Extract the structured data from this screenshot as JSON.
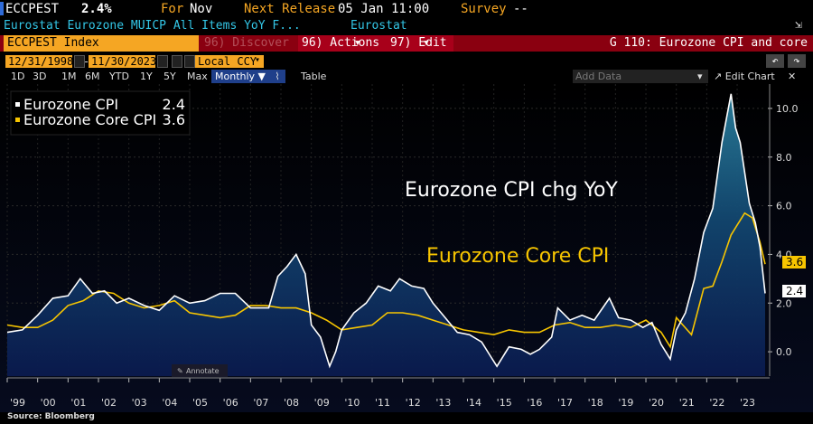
{
  "header": {
    "ticker": "ECCPEST",
    "value": "2.4%",
    "for_label": "For",
    "for_value": "Nov",
    "next_release_label": "Next Release",
    "next_release_value": "05 Jan 11:00",
    "survey_label": "Survey",
    "survey_value": "--",
    "description": "Eurostat Eurozone MUICP All Items YoY F...",
    "source_name": "Eurostat"
  },
  "toolbar": {
    "security": "ECCPEST Index",
    "discover": "96) Discover",
    "actions": "96) Actions",
    "edit": "97) Edit",
    "chart_title": "G 110: Eurozone CPI and core",
    "start_date": "12/31/1998",
    "end_date": "11/30/2023",
    "currency": "Local CCY",
    "periods": [
      "1D",
      "3D",
      "1M",
      "6M",
      "YTD",
      "1Y",
      "5Y",
      "Max"
    ],
    "frequency": "Monthly",
    "table_label": "Table",
    "add_data_placeholder": "Add Data",
    "edit_chart": "Edit Chart"
  },
  "legend": {
    "cpi_label": "Eurozone CPI",
    "cpi_value": "2.4",
    "core_label": "Eurozone Core CPI",
    "core_value": "3.6"
  },
  "annotations": {
    "cpi_title": "Eurozone CPI chg YoY",
    "core_title": "Eurozone Core CPI",
    "annotate_button": "Annotate"
  },
  "footer": {
    "source": "Source: Bloomberg"
  },
  "colors": {
    "cpi": "#ffffff",
    "core": "#f7c500",
    "accent": "#f5a623",
    "bar": "#8a0010"
  },
  "chart_data": {
    "type": "area",
    "ylim": [
      -1.0,
      11.0
    ],
    "yticks": [
      0.0,
      2.0,
      4.0,
      6.0,
      8.0,
      10.0
    ],
    "ytick_labels": [
      "0.0",
      "2.0",
      "4.0",
      "6.0",
      "8.0",
      "10.0"
    ],
    "xticks": [
      "'99",
      "'00",
      "'01",
      "'02",
      "'03",
      "'04",
      "'05",
      "'06",
      "'07",
      "'08",
      "'09",
      "'10",
      "'11",
      "'12",
      "'13",
      "'14",
      "'15",
      "'16",
      "'17",
      "'18",
      "'19",
      "'20",
      "'21",
      "'22",
      "'23"
    ],
    "series": [
      {
        "name": "Eurozone CPI",
        "last_value": 2.4,
        "x": [
          1999.0,
          1999.5,
          2000.0,
          2000.5,
          2001.0,
          2001.4,
          2001.8,
          2002.2,
          2002.6,
          2003.0,
          2003.5,
          2004.0,
          2004.5,
          2005.0,
          2005.5,
          2006.0,
          2006.5,
          2007.0,
          2007.6,
          2007.9,
          2008.2,
          2008.5,
          2008.8,
          2009.0,
          2009.3,
          2009.6,
          2009.8,
          2010.0,
          2010.4,
          2010.8,
          2011.2,
          2011.6,
          2011.9,
          2012.3,
          2012.7,
          2013.0,
          2013.4,
          2013.8,
          2014.2,
          2014.6,
          2014.9,
          2015.1,
          2015.5,
          2015.9,
          2016.2,
          2016.5,
          2016.9,
          2017.1,
          2017.5,
          2017.9,
          2018.3,
          2018.8,
          2019.1,
          2019.5,
          2019.9,
          2020.2,
          2020.5,
          2020.8,
          2021.0,
          2021.3,
          2021.6,
          2021.9,
          2022.2,
          2022.5,
          2022.8,
          2022.95,
          2023.1,
          2023.4,
          2023.6,
          2023.75,
          2023.92
        ],
        "y": [
          0.8,
          0.9,
          1.5,
          2.2,
          2.3,
          3.0,
          2.4,
          2.5,
          2.0,
          2.2,
          1.9,
          1.7,
          2.3,
          2.0,
          2.1,
          2.4,
          2.4,
          1.8,
          1.8,
          3.1,
          3.5,
          4.0,
          3.2,
          1.1,
          0.6,
          -0.6,
          0.0,
          0.9,
          1.6,
          2.0,
          2.7,
          2.5,
          3.0,
          2.7,
          2.6,
          2.0,
          1.4,
          0.8,
          0.7,
          0.4,
          -0.2,
          -0.6,
          0.2,
          0.1,
          -0.1,
          0.1,
          0.6,
          1.8,
          1.3,
          1.5,
          1.3,
          2.2,
          1.4,
          1.3,
          1.0,
          1.2,
          0.3,
          -0.3,
          0.9,
          1.6,
          3.0,
          4.9,
          5.9,
          8.6,
          10.6,
          9.2,
          8.6,
          6.1,
          5.3,
          4.3,
          2.4
        ]
      },
      {
        "name": "Eurozone Core CPI",
        "last_value": 3.6,
        "x": [
          1999.0,
          1999.5,
          2000.0,
          2000.5,
          2001.0,
          2001.5,
          2002.0,
          2002.5,
          2003.0,
          2003.5,
          2004.0,
          2004.5,
          2005.0,
          2005.5,
          2006.0,
          2006.5,
          2007.0,
          2007.5,
          2008.0,
          2008.5,
          2009.0,
          2009.5,
          2010.0,
          2010.5,
          2011.0,
          2011.5,
          2012.0,
          2012.5,
          2013.0,
          2013.5,
          2014.0,
          2014.5,
          2015.0,
          2015.5,
          2016.0,
          2016.5,
          2017.0,
          2017.5,
          2018.0,
          2018.5,
          2019.0,
          2019.5,
          2020.0,
          2020.5,
          2020.8,
          2021.0,
          2021.5,
          2021.9,
          2022.2,
          2022.5,
          2022.8,
          2023.0,
          2023.25,
          2023.5,
          2023.75,
          2023.92
        ],
        "y": [
          1.1,
          1.0,
          1.0,
          1.3,
          1.9,
          2.1,
          2.5,
          2.4,
          2.0,
          1.8,
          1.9,
          2.1,
          1.6,
          1.5,
          1.4,
          1.5,
          1.9,
          1.9,
          1.8,
          1.8,
          1.6,
          1.3,
          0.9,
          1.0,
          1.1,
          1.6,
          1.6,
          1.5,
          1.3,
          1.1,
          0.9,
          0.8,
          0.7,
          0.9,
          0.8,
          0.8,
          1.1,
          1.2,
          1.0,
          1.0,
          1.1,
          1.0,
          1.3,
          0.8,
          0.2,
          1.4,
          0.7,
          2.6,
          2.7,
          3.7,
          4.8,
          5.2,
          5.7,
          5.5,
          4.5,
          3.6
        ]
      }
    ]
  }
}
